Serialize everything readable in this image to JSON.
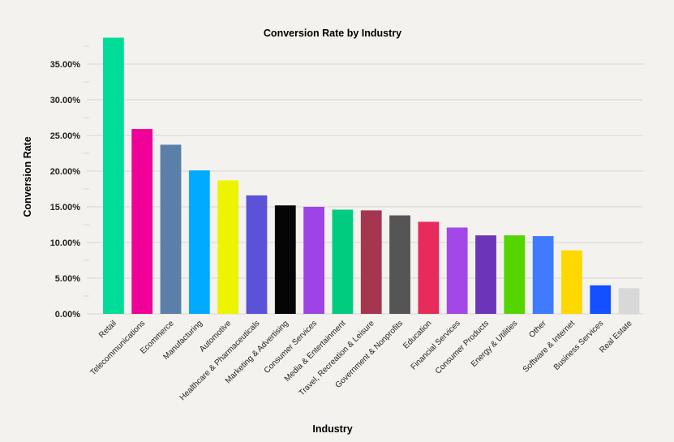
{
  "chart_data": {
    "type": "bar",
    "title": "Conversion Rate by Industry",
    "xlabel": "Industry",
    "ylabel": "Conversion Rate",
    "ylim": [
      0,
      38
    ],
    "yticks": [
      "0.00%",
      "5.00%",
      "10.00%",
      "15.00%",
      "20.00%",
      "25.00%",
      "30.00%",
      "35.00%"
    ],
    "grid": true,
    "categories": [
      "Retail",
      "Telecommunications",
      "Ecommerce",
      "Manufacturing",
      "Automotive",
      "Healthcare & Pharmaceuticals",
      "Marketing & Advertising",
      "Consumer Services",
      "Media & Entertainment",
      "Travel, Recreation & Leisure",
      "Government & Nonprofits",
      "Education",
      "Financial Services",
      "Consumer Products",
      "Energy & Utilities",
      "Other",
      "Software & Internet",
      "Business Services",
      "Real Estate"
    ],
    "values": [
      38.7,
      25.9,
      23.7,
      20.1,
      18.7,
      16.6,
      15.2,
      15.0,
      14.6,
      14.5,
      13.8,
      12.9,
      12.1,
      11.0,
      11.0,
      10.9,
      8.9,
      4.0,
      3.6
    ],
    "colors": [
      "#00dd99",
      "#ee0099",
      "#5a7fa8",
      "#00aaff",
      "#ecf400",
      "#5b52d8",
      "#050505",
      "#9e44e6",
      "#00cc80",
      "#a5364f",
      "#555555",
      "#e72b5a",
      "#a347e8",
      "#6c34b8",
      "#55d400",
      "#3f7bff",
      "#ffd800",
      "#1450ff",
      "#d8d8d8"
    ]
  }
}
